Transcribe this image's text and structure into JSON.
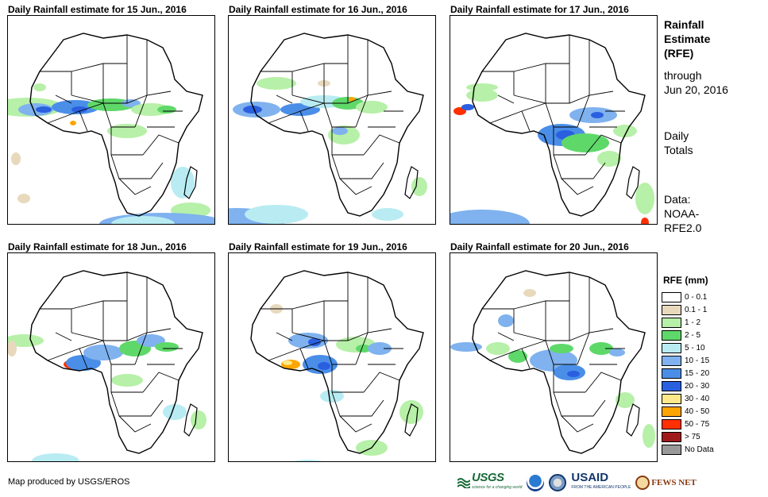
{
  "panels": [
    {
      "title": "Daily Rainfall estimate for 15 Jun., 2016"
    },
    {
      "title": "Daily Rainfall estimate for 16 Jun., 2016"
    },
    {
      "title": "Daily Rainfall estimate for 17 Jun., 2016"
    },
    {
      "title": "Daily Rainfall estimate for 18 Jun., 2016"
    },
    {
      "title": "Daily Rainfall estimate for 19 Jun., 2016"
    },
    {
      "title": "Daily Rainfall estimate for 20 Jun., 2016"
    }
  ],
  "side": {
    "title_lines": [
      "Rainfall",
      "Estimate",
      "(RFE)"
    ],
    "through_lines": [
      "through",
      "Jun 20, 2016"
    ],
    "daily_lines": [
      "Daily",
      "Totals"
    ],
    "data_lines": [
      "Data:",
      "NOAA-",
      "RFE2.0"
    ]
  },
  "legend": {
    "title": "RFE (mm)",
    "items": [
      {
        "label": "0 - 0.1",
        "color": "#ffffff"
      },
      {
        "label": "0.1 - 1",
        "color": "#e8d9bd"
      },
      {
        "label": "1 - 2",
        "color": "#b7f0a8"
      },
      {
        "label": "2 - 5",
        "color": "#5fd86a"
      },
      {
        "label": "5 - 10",
        "color": "#b8ecf2"
      },
      {
        "label": "10 - 15",
        "color": "#7fb2ee"
      },
      {
        "label": "15 - 20",
        "color": "#4a8ee8"
      },
      {
        "label": "20 - 30",
        "color": "#2a5fe0"
      },
      {
        "label": "30 - 40",
        "color": "#ffe98a"
      },
      {
        "label": "40 - 50",
        "color": "#ffa500"
      },
      {
        "label": "50 - 75",
        "color": "#ff3000"
      },
      {
        "label": "> 75",
        "color": "#a01a1a"
      },
      {
        "label": "No Data",
        "color": "#999999"
      }
    ]
  },
  "credit": "Map produced by USGS/EROS",
  "logos": {
    "usgs": "USGS",
    "usgs_tagline": "science for a changing world",
    "usaid": "USAID",
    "usaid_tagline": "FROM THE AMERICAN PEOPLE",
    "fews": "FEWS NET"
  }
}
